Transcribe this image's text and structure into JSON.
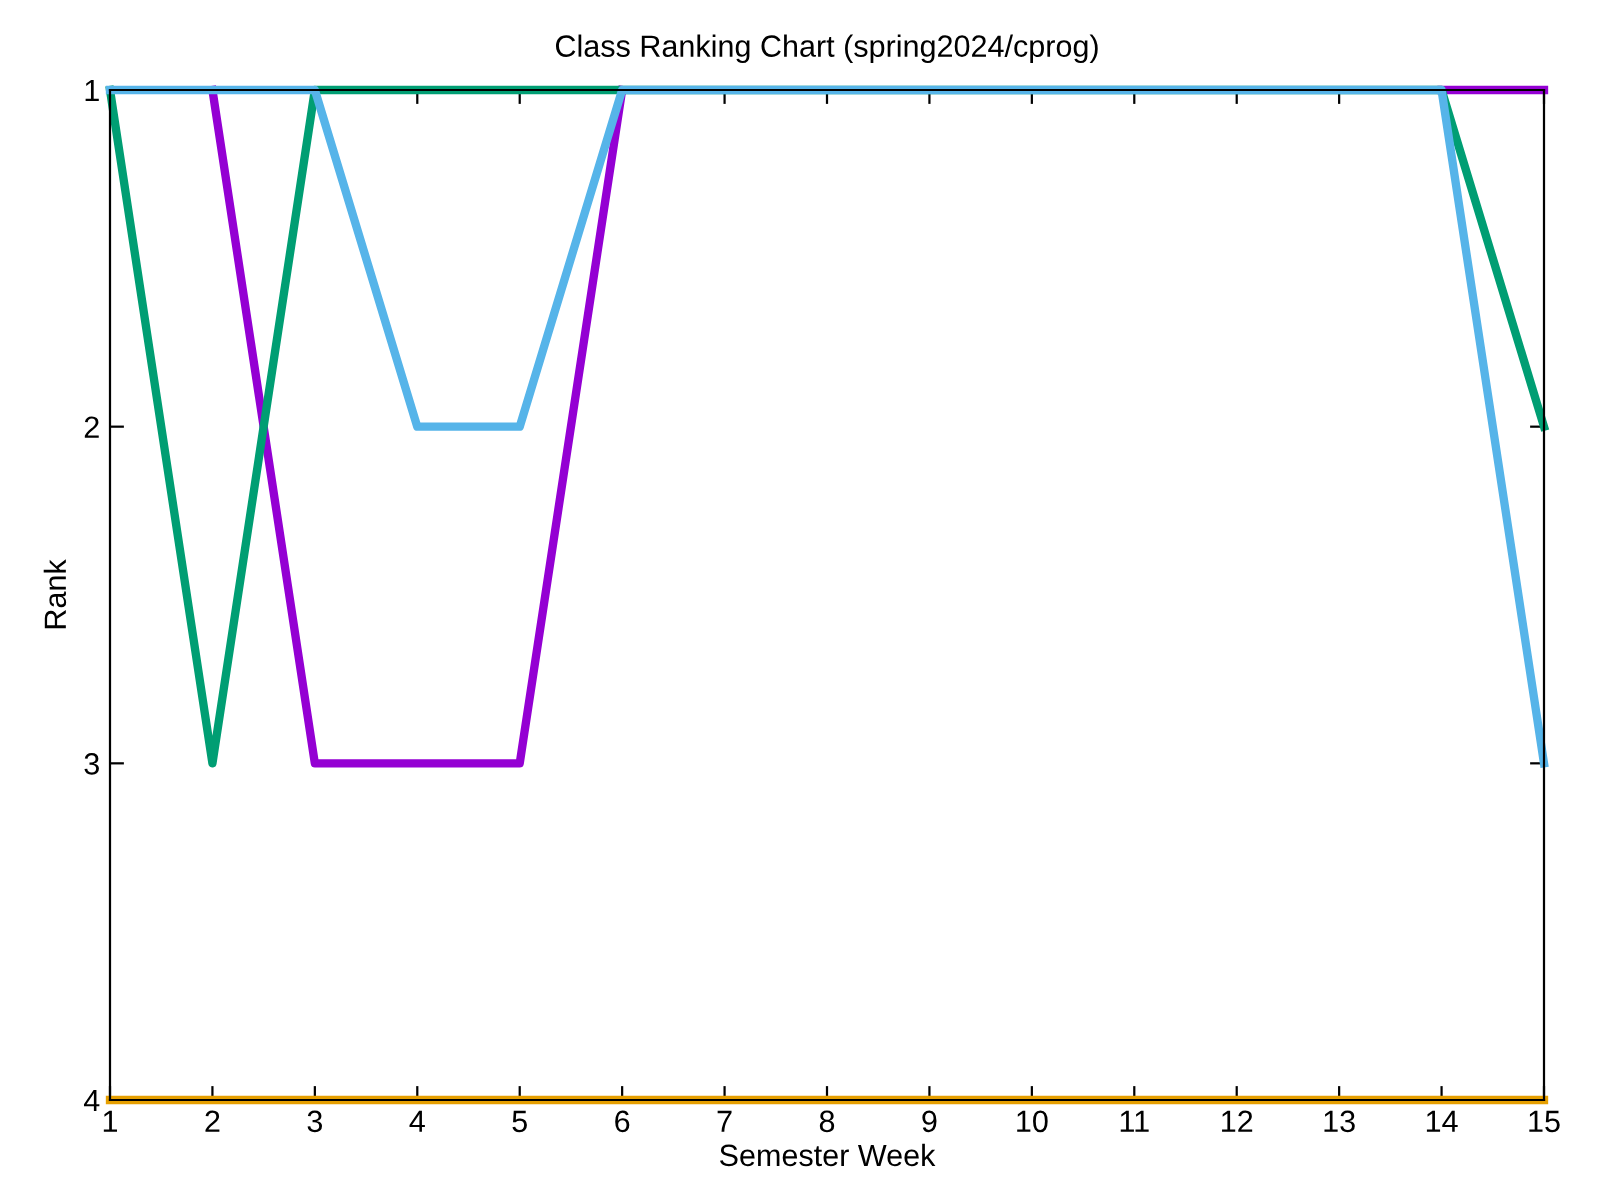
{
  "chart_data": {
    "type": "line",
    "title": "Class Ranking Chart (spring2024/cprog)",
    "xlabel": "Semester Week",
    "ylabel": "Rank",
    "x": [
      1,
      2,
      3,
      4,
      5,
      6,
      7,
      8,
      9,
      10,
      11,
      12,
      13,
      14,
      15
    ],
    "series": [
      {
        "color": "#9400d3",
        "values": [
          null,
          1,
          3,
          3,
          3,
          1,
          null,
          null,
          null,
          null,
          null,
          null,
          null,
          1,
          1
        ]
      },
      {
        "color": "#009e73",
        "values": [
          1,
          3,
          1,
          1,
          1,
          1,
          1,
          1,
          1,
          1,
          1,
          1,
          1,
          1,
          2
        ]
      },
      {
        "color": "#56b4e9",
        "values": [
          1,
          1,
          1,
          2,
          2,
          1,
          1,
          1,
          1,
          1,
          1,
          1,
          1,
          1,
          3
        ]
      },
      {
        "color": "#e69f00",
        "values": [
          4,
          4,
          4,
          4,
          4,
          4,
          4,
          4,
          4,
          4,
          4,
          4,
          4,
          4,
          4
        ]
      }
    ],
    "xlim": [
      1,
      15
    ],
    "xticks": [
      1,
      2,
      3,
      4,
      5,
      6,
      7,
      8,
      9,
      10,
      11,
      12,
      13,
      14,
      15
    ],
    "ylim": [
      4,
      1
    ],
    "yticks": [
      1,
      2,
      3,
      4
    ],
    "grid": false,
    "legend": false,
    "marker": "none",
    "line_style": "solid"
  }
}
